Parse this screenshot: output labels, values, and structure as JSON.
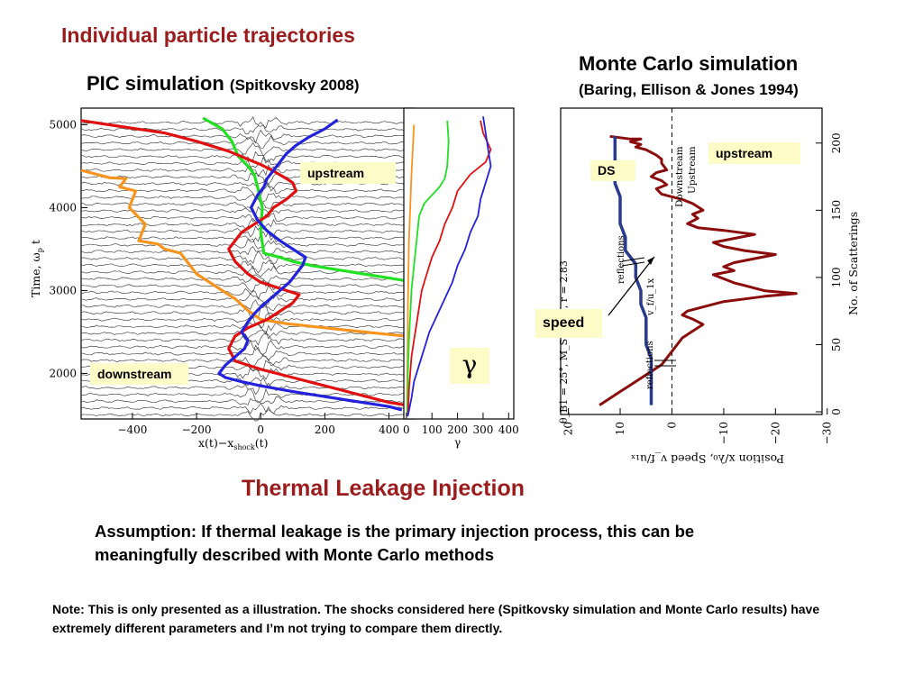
{
  "header": {
    "title": "Individual particle trajectories",
    "pic_title": "PIC simulation",
    "pic_cite": "(Spitkovsky 2008)",
    "mc_title": "Monte Carlo simulation",
    "mc_cite": "(Baring, Ellison & Jones 1994)"
  },
  "labels": {
    "upstream_pic": "upstream",
    "downstream": "downstream",
    "gamma_symbol": "γ",
    "upstream_mc": "upstream",
    "ds": "DS",
    "speed": "speed"
  },
  "body": {
    "section_title": "Thermal Leakage Injection",
    "assumption": "Assumption: If thermal leakage is the primary injection process, this can be meaningfully described with Monte Carlo methods",
    "note": "Note: This is only presented as a illustration. The shocks considered here (Spitkovsky simulation and Monte Carlo results) have extremely different parameters and I’m not trying to compare them directly."
  },
  "colors": {
    "title_red": "#9b1c1c",
    "orange": "#f7941d",
    "green": "#22e022",
    "red": "#e01010",
    "blue": "#2222dd",
    "dark_red": "#8b0c0c",
    "navy": "#2a3a8c",
    "label_bg": "#fefcc6"
  },
  "chart_data": [
    {
      "type": "line",
      "title": "",
      "xlabel": "x(t)−x_shock(t)",
      "ylabel": "Time, ω_p t",
      "xlim": [
        -560,
        480
      ],
      "ylim": [
        1450,
        5200
      ],
      "xticks": [
        -400,
        -200,
        0,
        200,
        400
      ],
      "yticks": [
        2000,
        3000,
        4000,
        5000
      ],
      "xtick_labels": [
        "−400",
        "−200",
        "0",
        "200",
        "400"
      ],
      "ytick_labels": [
        "2000",
        "3000",
        "4000",
        "5000"
      ],
      "grid": false,
      "series": [
        {
          "color": "orange",
          "x": [
            -560,
            -470,
            -420,
            -440,
            -390,
            -410,
            -360,
            -380,
            -320,
            -300,
            -250,
            -220,
            -200,
            -160,
            -120,
            -80,
            -40,
            0,
            80,
            200,
            320,
            400,
            480
          ],
          "y": [
            4450,
            4360,
            4350,
            4250,
            4200,
            4000,
            3800,
            3600,
            3560,
            3500,
            3450,
            3300,
            3200,
            3100,
            3000,
            2900,
            2760,
            2650,
            2600,
            2550,
            2500,
            2470,
            2440
          ]
        },
        {
          "color": "green",
          "x": [
            -180,
            -120,
            -90,
            -70,
            -40,
            -20,
            -10,
            5,
            0,
            10,
            60,
            100,
            160,
            240,
            320,
            400,
            480
          ],
          "y": [
            5080,
            4950,
            4800,
            4620,
            4500,
            4400,
            4250,
            4000,
            3700,
            3450,
            3400,
            3350,
            3300,
            3250,
            3200,
            3150,
            3100
          ]
        },
        {
          "color": "red",
          "x": [
            -560,
            -300,
            -200,
            -100,
            -50,
            0,
            40,
            80,
            100,
            110,
            80,
            40,
            20,
            -20,
            -60,
            -100,
            -80,
            -40,
            0,
            40,
            80,
            120,
            100,
            60,
            20,
            -40,
            -80,
            -100,
            -80,
            0,
            100,
            200,
            300,
            400,
            480
          ],
          "y": [
            5050,
            4900,
            4800,
            4680,
            4600,
            4520,
            4440,
            4350,
            4300,
            4200,
            4100,
            4000,
            3900,
            3800,
            3700,
            3500,
            3350,
            3200,
            3100,
            3050,
            3000,
            2950,
            2850,
            2750,
            2650,
            2550,
            2450,
            2300,
            2150,
            2050,
            1950,
            1850,
            1750,
            1650,
            1600
          ]
        },
        {
          "color": "blue",
          "x": [
            240,
            200,
            150,
            110,
            80,
            60,
            40,
            20,
            10,
            -10,
            -30,
            -10,
            20,
            60,
            100,
            140,
            130,
            110,
            90,
            60,
            30,
            0,
            -20,
            -40,
            -60,
            -40,
            -50,
            -80,
            -110,
            -130,
            -110,
            -60,
            0,
            100,
            200,
            300,
            400,
            440
          ],
          "y": [
            5060,
            4950,
            4850,
            4750,
            4650,
            4550,
            4450,
            4350,
            4250,
            4150,
            4000,
            3850,
            3720,
            3600,
            3500,
            3400,
            3300,
            3200,
            3100,
            3000,
            2900,
            2800,
            2720,
            2620,
            2500,
            2400,
            2300,
            2200,
            2100,
            2000,
            1950,
            1900,
            1850,
            1780,
            1720,
            1660,
            1600,
            1560
          ]
        }
      ]
    },
    {
      "type": "line",
      "title": "",
      "xlabel": "γ",
      "ylabel": "",
      "xlim": [
        -10,
        420
      ],
      "ylim": [
        1450,
        5200
      ],
      "xticks": [
        0,
        100,
        200,
        300,
        400
      ],
      "xtick_labels": [
        "0",
        "100",
        "200",
        "300",
        "400"
      ],
      "grid": false,
      "series": [
        {
          "color": "orange",
          "x": [
            30,
            25,
            20,
            15,
            10,
            8,
            6,
            5,
            4,
            3,
            3,
            3
          ],
          "y": [
            5000,
            4700,
            4400,
            4000,
            3600,
            3200,
            2800,
            2400,
            2100,
            1800,
            1600,
            1500
          ]
        },
        {
          "color": "green",
          "x": [
            160,
            165,
            160,
            150,
            130,
            100,
            70,
            50,
            40,
            30,
            20,
            15,
            10,
            8,
            6,
            5,
            4,
            3
          ],
          "y": [
            5050,
            4800,
            4500,
            4350,
            4250,
            4150,
            4050,
            3900,
            3600,
            3300,
            3000,
            2700,
            2400,
            2200,
            2000,
            1800,
            1650,
            1500
          ]
        },
        {
          "color": "red",
          "x": [
            290,
            300,
            330,
            310,
            250,
            200,
            180,
            150,
            130,
            100,
            80,
            60,
            50,
            40,
            30,
            20,
            15,
            10,
            8,
            6
          ],
          "y": [
            5050,
            4900,
            4700,
            4550,
            4400,
            4200,
            4000,
            3800,
            3600,
            3400,
            3200,
            3000,
            2800,
            2600,
            2400,
            2200,
            2000,
            1800,
            1600,
            1500
          ]
        },
        {
          "color": "blue",
          "x": [
            300,
            310,
            320,
            330,
            310,
            290,
            280,
            250,
            230,
            200,
            180,
            150,
            120,
            90,
            70,
            50,
            30,
            20,
            10,
            5
          ],
          "y": [
            5100,
            4900,
            4700,
            4500,
            4300,
            4100,
            3900,
            3700,
            3500,
            3300,
            3100,
            2900,
            2700,
            2500,
            2300,
            2100,
            1900,
            1700,
            1550,
            1480
          ]
        }
      ]
    },
    {
      "type": "line",
      "title": "",
      "xlabel": "Position x/λ₀, Speed v_f/u₁ₓ",
      "ylabel": "No. of Scatterings",
      "xlim": [
        21.5,
        -29
      ],
      "ylim": [
        -2,
        226
      ],
      "xticks": [
        20,
        10,
        0,
        -10,
        -20,
        -30
      ],
      "xtick_labels": [
        "20",
        "10",
        "0",
        "−10",
        "−20",
        "−30"
      ],
      "yticks": [
        0,
        50,
        100,
        150,
        200
      ],
      "ytick_labels": [
        "0",
        "50",
        "100",
        "150",
        "200"
      ],
      "annotations": [
        "θ_B1 = 25°, M_S = 2.7, r = 2.83",
        "Downstream",
        "Upstream",
        "reflections",
        "reflections",
        "v_f/u_1x"
      ],
      "grid": false,
      "series": [
        {
          "color": "dark_red",
          "x": [
            12,
            10,
            8,
            6,
            8,
            6,
            7,
            5,
            4,
            3,
            2,
            2,
            1,
            3,
            4,
            2,
            1,
            3,
            2,
            0,
            -2,
            -4,
            -6,
            -4,
            -5,
            -3,
            -5,
            -10,
            -16,
            -12,
            -8,
            -10,
            -14,
            -20,
            -16,
            -12,
            -10,
            -12,
            -8,
            -10,
            -12,
            -14,
            -16,
            -18,
            -24,
            -18,
            -14,
            -10,
            -8,
            -6,
            -3,
            -2,
            -4,
            -6,
            -4,
            -2,
            -1,
            0,
            1,
            2,
            4,
            6,
            8,
            10,
            12,
            14
          ],
          "y": [
            205,
            204,
            203,
            203,
            201,
            199,
            197,
            195,
            193,
            191,
            188,
            185,
            180,
            178,
            175,
            172,
            169,
            166,
            162,
            160,
            158,
            155,
            150,
            147,
            144,
            140,
            137,
            135,
            132,
            129,
            126,
            123,
            120,
            117,
            114,
            111,
            108,
            105,
            102,
            99,
            96,
            94,
            92,
            90,
            88,
            86,
            84,
            82,
            80,
            78,
            75,
            72,
            69,
            65,
            60,
            55,
            50,
            45,
            40,
            35,
            30,
            25,
            20,
            15,
            10,
            5
          ]
        },
        {
          "color": "navy",
          "x": [
            11,
            11,
            11,
            11,
            10,
            10,
            10,
            9,
            9,
            9,
            8,
            7,
            7,
            6,
            6,
            5,
            5,
            5,
            4,
            4,
            4,
            4
          ],
          "y": [
            205,
            190,
            180,
            170,
            160,
            150,
            140,
            130,
            125,
            120,
            115,
            110,
            100,
            90,
            80,
            70,
            60,
            50,
            40,
            30,
            20,
            5
          ]
        }
      ]
    }
  ]
}
